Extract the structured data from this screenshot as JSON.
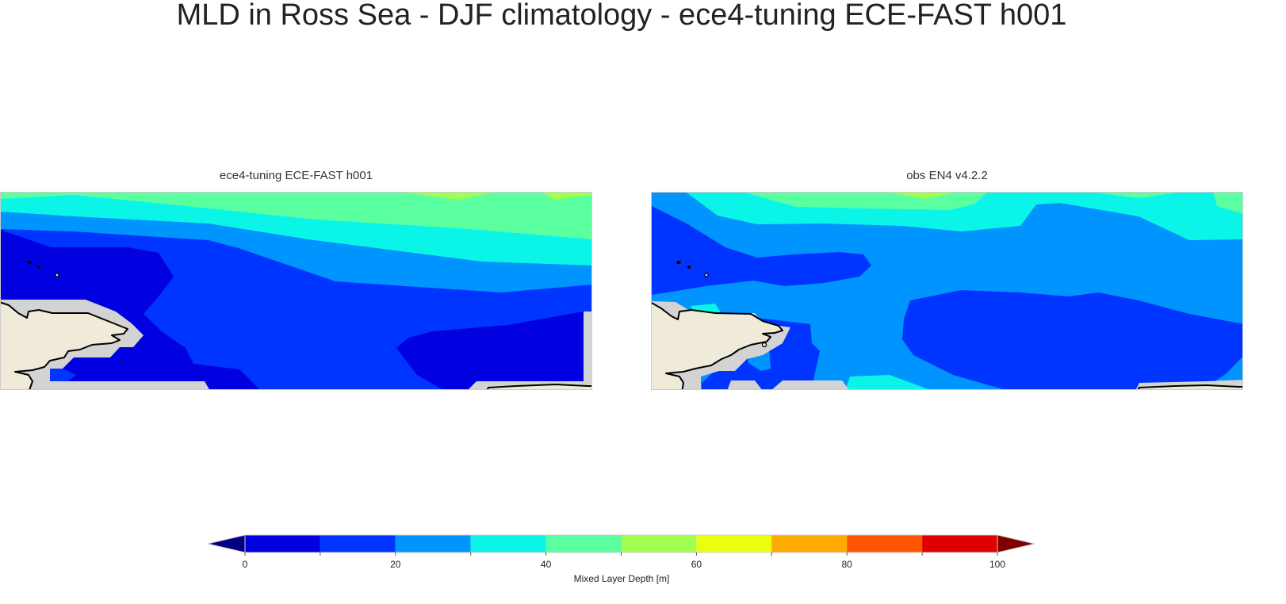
{
  "title": "MLD in Ross Sea - DJF climatology - ece4-tuning ECE-FAST h001",
  "panels": [
    {
      "title": "ece4-tuning ECE-FAST h001"
    },
    {
      "title": "obs EN4 v4.2.2"
    }
  ],
  "colorbar": {
    "label": "Mixed Layer Depth [m]",
    "levels": [
      0,
      10,
      20,
      30,
      40,
      50,
      60,
      70,
      80,
      90,
      100
    ],
    "tick_labels": [
      "0",
      "20",
      "40",
      "60",
      "80",
      "100"
    ],
    "extend": "both",
    "under_color": "#000080",
    "over_color": "#800000",
    "colors": [
      "#0000e0",
      "#0034ff",
      "#0094ff",
      "#0af5e8",
      "#5aff9f",
      "#a0ff50",
      "#e8ff10",
      "#ffaa00",
      "#ff5500",
      "#e00000"
    ]
  },
  "land_color": "#efebd8",
  "mask_color": "#d3d3d3"
}
